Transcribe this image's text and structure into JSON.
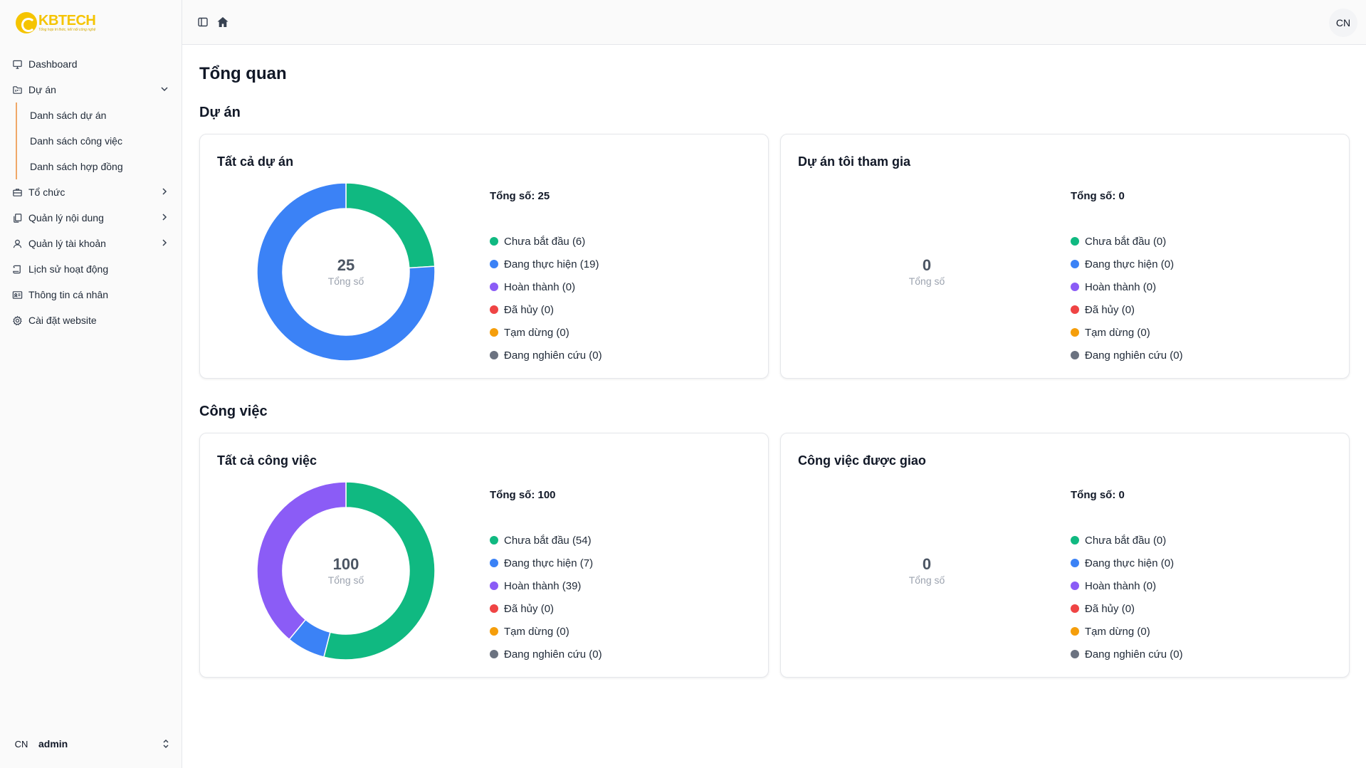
{
  "brand": {
    "name": "KBTECH",
    "tagline": "Tổng hợp tri thức, kết nối công nghệ"
  },
  "sidebar": {
    "items": [
      {
        "label": "Dashboard",
        "icon": "monitor-icon"
      },
      {
        "label": "Dự án",
        "icon": "folder-kanban-icon",
        "expanded": true,
        "children": [
          "Danh sách dự án",
          "Danh sách công việc",
          "Danh sách hợp đồng"
        ]
      },
      {
        "label": "Tổ chức",
        "icon": "briefcase-icon"
      },
      {
        "label": "Quản lý nội dung",
        "icon": "files-icon"
      },
      {
        "label": "Quản lý tài khoản",
        "icon": "user-icon"
      },
      {
        "label": "Lịch sử hoạt động",
        "icon": "scroll-icon"
      },
      {
        "label": "Thông tin cá nhân",
        "icon": "id-card-icon"
      },
      {
        "label": "Cài đặt website",
        "icon": "gear-icon"
      }
    ],
    "user": {
      "initials": "CN",
      "name": "admin"
    }
  },
  "header": {
    "avatar_initials": "CN"
  },
  "main": {
    "title": "Tổng quan",
    "sections": {
      "projects": "Dự án",
      "tasks": "Công việc"
    },
    "status_labels": [
      "Chưa bắt đầu",
      "Đang thực hiện",
      "Hoàn thành",
      "Đã hủy",
      "Tạm dừng",
      "Đang nghiên cứu"
    ],
    "status_colors": [
      "#10b981",
      "#3b82f6",
      "#8b5cf6",
      "#ef4444",
      "#f59e0b",
      "#6b7280"
    ],
    "center_label": "Tổng số"
  },
  "chart_data": [
    {
      "type": "pie",
      "title": "Tất cả dự án",
      "total_text": "Tổng số: 25",
      "total": 25,
      "categories": [
        "Chưa bắt đầu",
        "Đang thực hiện",
        "Hoàn thành",
        "Đã hủy",
        "Tạm dừng",
        "Đang nghiên cứu"
      ],
      "values": [
        6,
        19,
        0,
        0,
        0,
        0
      ]
    },
    {
      "type": "pie",
      "title": "Dự án tôi tham gia",
      "total_text": "Tổng số: 0",
      "total": 0,
      "categories": [
        "Chưa bắt đầu",
        "Đang thực hiện",
        "Hoàn thành",
        "Đã hủy",
        "Tạm dừng",
        "Đang nghiên cứu"
      ],
      "values": [
        0,
        0,
        0,
        0,
        0,
        0
      ]
    },
    {
      "type": "pie",
      "title": "Tất cả công việc",
      "total_text": "Tổng số: 100",
      "total": 100,
      "categories": [
        "Chưa bắt đầu",
        "Đang thực hiện",
        "Hoàn thành",
        "Đã hủy",
        "Tạm dừng",
        "Đang nghiên cứu"
      ],
      "values": [
        54,
        7,
        39,
        0,
        0,
        0
      ]
    },
    {
      "type": "pie",
      "title": "Công việc được giao",
      "total_text": "Tổng số: 0",
      "total": 0,
      "categories": [
        "Chưa bắt đầu",
        "Đang thực hiện",
        "Hoàn thành",
        "Đã hủy",
        "Tạm dừng",
        "Đang nghiên cứu"
      ],
      "values": [
        0,
        0,
        0,
        0,
        0,
        0
      ]
    }
  ]
}
